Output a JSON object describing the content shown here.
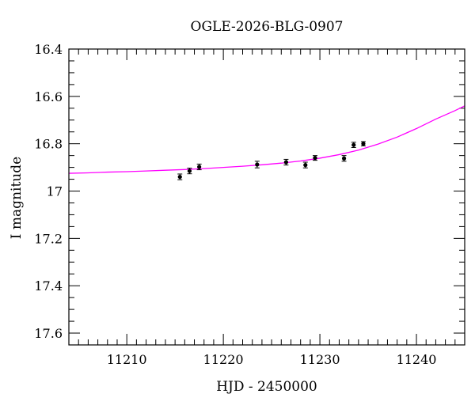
{
  "chart_data": {
    "type": "scatter",
    "title": "OGLE-2026-BLG-0907",
    "xlabel": "HJD - 2450000",
    "ylabel": "I magnitude",
    "xlim": [
      11204,
      11245
    ],
    "ylim": [
      17.65,
      16.4
    ],
    "y_inverted": true,
    "grid": false,
    "x_ticks": [
      11210,
      11220,
      11230,
      11240
    ],
    "x_tick_labels": [
      "11210",
      "11220",
      "11230",
      "11240"
    ],
    "y_ticks": [
      16.4,
      16.6,
      16.8,
      17.0,
      17.2,
      17.4,
      17.6
    ],
    "y_tick_labels": [
      "16.4",
      "16.6",
      "16.8",
      "17",
      "17.2",
      "17.4",
      "17.6"
    ],
    "x_minor_step": 1,
    "y_minor_step": 0.05,
    "series": [
      {
        "kind": "points_with_errorbars",
        "color": "#000000",
        "points": [
          {
            "x": 11215.5,
            "y": 16.94,
            "err": 0.012
          },
          {
            "x": 11216.5,
            "y": 16.915,
            "err": 0.012
          },
          {
            "x": 11217.5,
            "y": 16.898,
            "err": 0.012
          },
          {
            "x": 11223.5,
            "y": 16.888,
            "err": 0.014
          },
          {
            "x": 11226.5,
            "y": 16.878,
            "err": 0.012
          },
          {
            "x": 11228.5,
            "y": 16.89,
            "err": 0.012
          },
          {
            "x": 11229.5,
            "y": 16.86,
            "err": 0.01
          },
          {
            "x": 11232.5,
            "y": 16.862,
            "err": 0.012
          },
          {
            "x": 11233.5,
            "y": 16.805,
            "err": 0.011
          },
          {
            "x": 11234.5,
            "y": 16.8,
            "err": 0.009
          }
        ]
      },
      {
        "kind": "model_curve",
        "color": "#ff00ff",
        "x": [
          11204,
          11206,
          11208,
          11210,
          11212,
          11214,
          11216,
          11218,
          11220,
          11222,
          11224,
          11226,
          11228,
          11230,
          11232,
          11234,
          11236,
          11238,
          11240,
          11242,
          11244,
          11245
        ],
        "y": [
          16.925,
          16.923,
          16.92,
          16.918,
          16.915,
          16.912,
          16.909,
          16.905,
          16.9,
          16.895,
          16.889,
          16.882,
          16.873,
          16.861,
          16.846,
          16.827,
          16.802,
          16.772,
          16.736,
          16.696,
          16.66,
          16.64
        ]
      }
    ]
  }
}
